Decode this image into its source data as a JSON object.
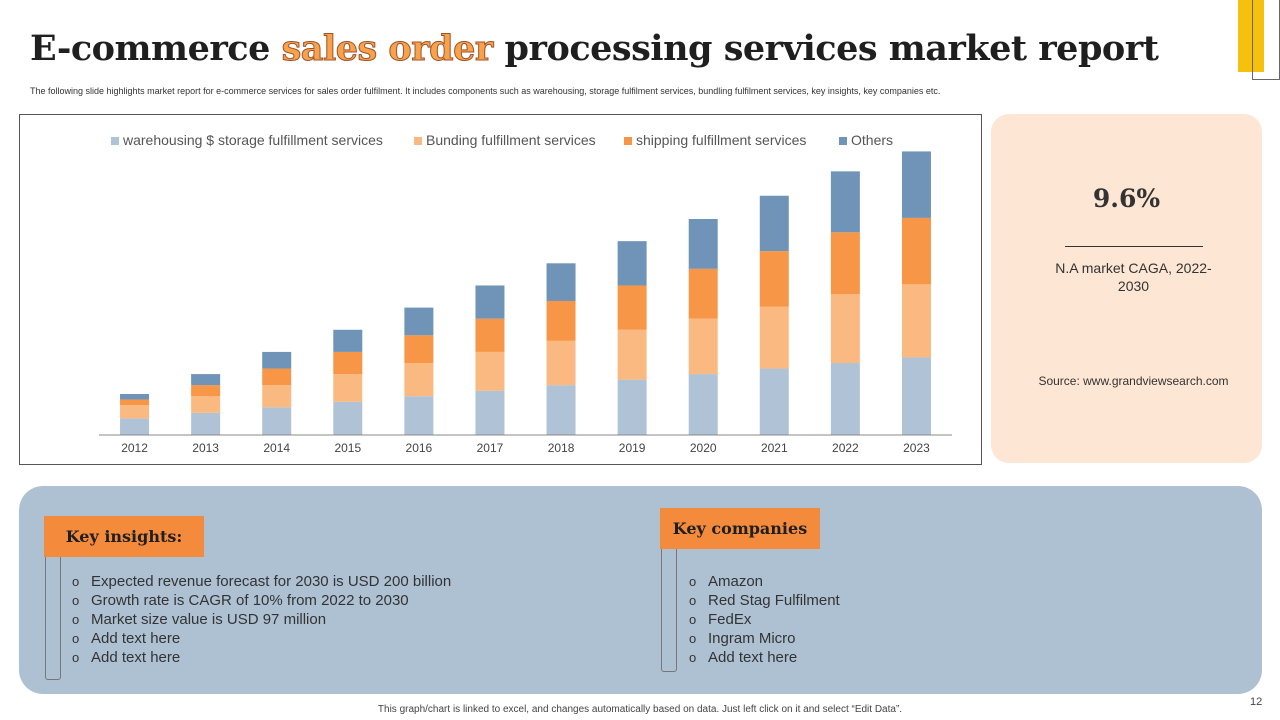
{
  "title": {
    "part1": "E-commerce ",
    "highlight": "sales order",
    "part2": " processing services market report"
  },
  "subtitle": "The following slide highlights market report for e-commerce services for sales order fulfilment. It includes components such as warehousing, storage fulfilment services, bundling fulfilment services, key insights, key companies etc.",
  "chart_data": {
    "type": "bar",
    "stacked": true,
    "title": "",
    "xlabel": "",
    "ylabel": "",
    "ylim": [
      0,
      260
    ],
    "grid": false,
    "legend_position": "top",
    "categories": [
      "2012",
      "2013",
      "2014",
      "2015",
      "2016",
      "2017",
      "2018",
      "2019",
      "2020",
      "2021",
      "2022",
      "2023"
    ],
    "series": [
      {
        "name": "warehousing $ storage fulfillment services",
        "color": "#afc2d6",
        "values": [
          15,
          20,
          25,
          30,
          35,
          40,
          45,
          50,
          55,
          60,
          65,
          70
        ]
      },
      {
        "name": "Bunding fulfillment services",
        "color": "#fbb982",
        "values": [
          12,
          15,
          20,
          25,
          30,
          35,
          40,
          45,
          50,
          56,
          62,
          66
        ]
      },
      {
        "name": "shipping fulfillment services",
        "color": "#f79646",
        "values": [
          5,
          10,
          15,
          20,
          25,
          30,
          36,
          40,
          45,
          50,
          56,
          60
        ]
      },
      {
        "name": "Others",
        "color": "#6f94b8",
        "values": [
          5,
          10,
          15,
          20,
          25,
          30,
          34,
          40,
          45,
          50,
          55,
          60
        ]
      }
    ]
  },
  "cagr": {
    "value": "9.6%",
    "label": "N.A market CAGA, 2022-2030",
    "source": "Source: www.grandviewsearch.com"
  },
  "insights": {
    "heading": "Key insights:",
    "items": [
      "Expected revenue forecast for 2030 is USD 200 billion",
      "Growth rate is CAGR of 10% from 2022 to 2030",
      "Market size value is USD 97 million",
      "Add text here",
      "Add text here"
    ]
  },
  "companies": {
    "heading": "Key companies",
    "items": [
      "Amazon",
      "Red Stag Fulfilment",
      "FedEx",
      "Ingram Micro",
      "Add text here"
    ]
  },
  "footer_note": "This graph/chart is linked to excel, and changes automatically based on data. Just left click on it and select “Edit Data”.",
  "page_number": "12",
  "colors": {
    "accent_orange": "#f48a3c",
    "accent_yellow": "#f6c10e",
    "panel_blue": "#aec1d3",
    "card_peach": "#fde6d3"
  }
}
